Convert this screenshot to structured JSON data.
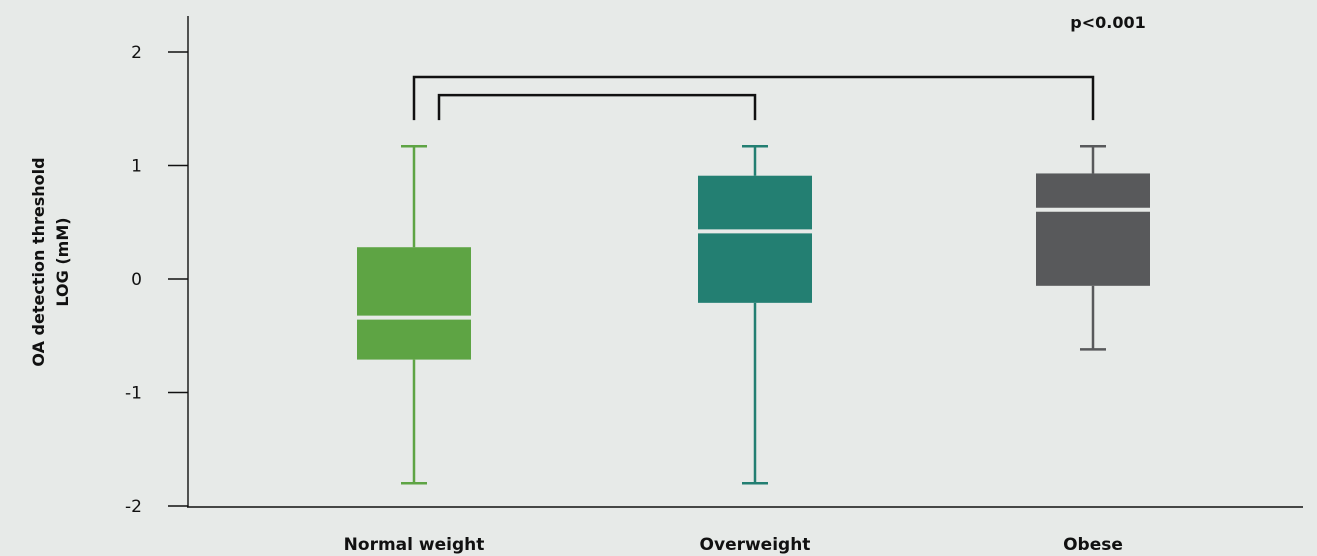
{
  "chart_data": {
    "type": "box",
    "title": "",
    "xlabel": "",
    "ylabel": [
      "OA detection threshold",
      "LOG (mM)"
    ],
    "ylim": [
      -2,
      2.2
    ],
    "yticks": [
      2,
      1,
      0,
      -1,
      -2
    ],
    "ytick_labels": [
      "2",
      "1",
      "0",
      "-1",
      "-2"
    ],
    "grid": false,
    "legend": "none",
    "categories": [
      "Normal weight",
      "Overweight",
      "Obese"
    ],
    "boxes": [
      {
        "category": "Normal weight",
        "min": -1.8,
        "q1": -0.71,
        "median": -0.34,
        "q3": 0.28,
        "max": 1.17,
        "color": "#5ea444"
      },
      {
        "category": "Overweight",
        "min": -1.8,
        "q1": -0.21,
        "median": 0.42,
        "q3": 0.91,
        "max": 1.17,
        "color": "#237f72"
      },
      {
        "category": "Obese",
        "min": -0.62,
        "q1": -0.06,
        "median": 0.61,
        "q3": 0.93,
        "max": 1.17,
        "color": "#58595b"
      }
    ],
    "significance": {
      "label": "p<0.001",
      "brackets": [
        {
          "from": "Normal weight",
          "to": "Obese",
          "y": 1.78
        },
        {
          "from": "Normal weight",
          "to": "Overweight",
          "y": 1.62
        }
      ]
    }
  },
  "colors": {
    "background": "#e7eae8",
    "axis": "#111111",
    "median_line": "#e7eae8"
  }
}
